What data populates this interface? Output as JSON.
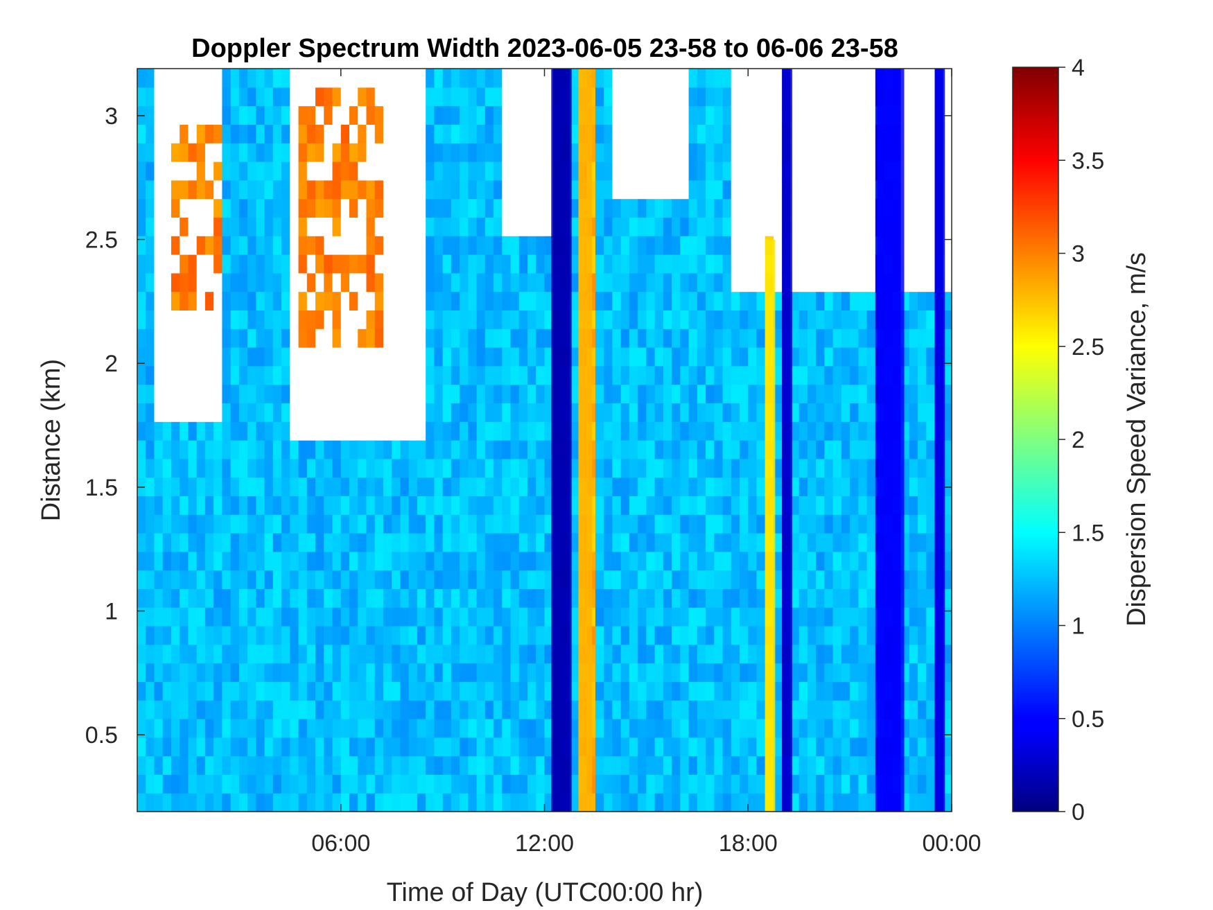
{
  "chart_data": {
    "type": "heatmap",
    "title": "Doppler Spectrum Width 2023-06-05 23-58 to 06-06 23-58",
    "xlabel": "Time of Day (UTC00:00 hr)",
    "ylabel": "Distance (km)",
    "colorbar_label": "Dispersion Speed Variance, m/s",
    "colormap": "jet",
    "xlim_hours": [
      0,
      24
    ],
    "ylim_km": [
      0.19,
      3.19
    ],
    "clim": [
      0,
      4
    ],
    "x_tick_labels": [
      "06:00",
      "12:00",
      "18:00",
      "00:00"
    ],
    "x_tick_hours": [
      6,
      12,
      18,
      24
    ],
    "y_ticks": [
      0.5,
      1,
      1.5,
      2,
      2.5,
      3
    ],
    "y_tick_labels": [
      "0.5",
      "1",
      "1.5",
      "2",
      "2.5",
      "3"
    ],
    "colorbar_ticks": [
      0,
      0.5,
      1,
      1.5,
      2,
      2.5,
      3,
      3.5,
      4
    ],
    "colorbar_tick_labels": [
      "0",
      "0.5",
      "1",
      "1.5",
      "2",
      "2.5",
      "3",
      "3.5",
      "4"
    ],
    "background_value": 1.25,
    "no_data_color": "#ffffff",
    "features": [
      {
        "kind": "no-data",
        "t_range": [
          0.6,
          2.6
        ],
        "d_range": [
          1.75,
          3.19
        ]
      },
      {
        "kind": "high-width",
        "t_range": [
          1.0,
          2.6
        ],
        "d_range": [
          2.2,
          3.0
        ],
        "value": 3.0
      },
      {
        "kind": "no-data",
        "t_range": [
          4.4,
          8.6
        ],
        "d_range": [
          1.7,
          3.19
        ]
      },
      {
        "kind": "high-width",
        "t_range": [
          4.8,
          7.3
        ],
        "d_range": [
          2.1,
          3.1
        ],
        "value": 3.0
      },
      {
        "kind": "no-data",
        "t_range": [
          10.8,
          12.6
        ],
        "d_range": [
          2.5,
          3.19
        ]
      },
      {
        "kind": "no-data",
        "t_range": [
          14.0,
          16.2
        ],
        "d_range": [
          2.7,
          3.19
        ]
      },
      {
        "kind": "no-data",
        "t_range": [
          17.5,
          24.0
        ],
        "d_range": [
          2.3,
          3.19
        ]
      },
      {
        "kind": "low-width-band",
        "t_range": [
          12.2,
          12.8
        ],
        "d_range": [
          0.19,
          3.19
        ],
        "value": 0.2
      },
      {
        "kind": "high-width-band",
        "t_range": [
          13.0,
          13.4
        ],
        "d_range": [
          0.19,
          3.19
        ],
        "value": 2.8
      },
      {
        "kind": "high-width-band",
        "t_range": [
          18.5,
          18.8
        ],
        "d_range": [
          0.19,
          2.5
        ],
        "value": 2.6
      },
      {
        "kind": "low-width-band",
        "t_range": [
          19.0,
          19.3
        ],
        "d_range": [
          0.19,
          3.19
        ],
        "value": 0.3
      },
      {
        "kind": "low-width-band",
        "t_range": [
          21.8,
          22.6
        ],
        "d_range": [
          0.19,
          3.19
        ],
        "value": 0.5
      },
      {
        "kind": "low-width-band",
        "t_range": [
          23.5,
          23.8
        ],
        "d_range": [
          0.19,
          3.19
        ],
        "value": 0.4
      }
    ]
  }
}
